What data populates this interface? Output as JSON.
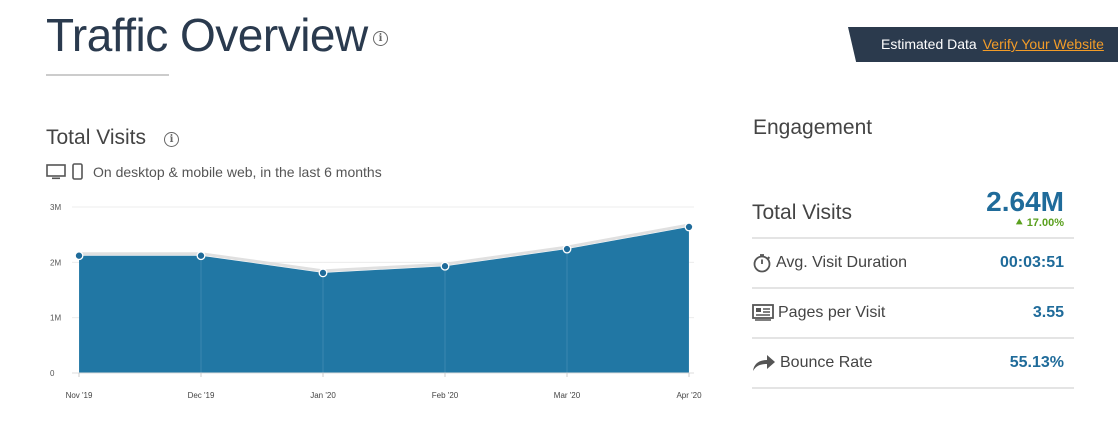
{
  "header": {
    "title": "Traffic Overview",
    "info_icon": "info-icon"
  },
  "banner": {
    "label": "Estimated Data",
    "link": "Verify Your Website"
  },
  "total_visits_panel": {
    "title": "Total Visits",
    "subtitle": "On desktop & mobile web, in the last 6 months"
  },
  "engagement": {
    "title": "Engagement",
    "total_visits": {
      "label": "Total Visits",
      "value": "2.64M",
      "change": "17.00%",
      "change_color": "#5aa01e"
    },
    "rows": [
      {
        "icon": "stopwatch-icon",
        "label": "Avg. Visit Duration",
        "value": "00:03:51"
      },
      {
        "icon": "pages-icon",
        "label": "Pages per Visit",
        "value": "3.55"
      },
      {
        "icon": "share-arrow-icon",
        "label": "Bounce Rate",
        "value": "55.13%"
      }
    ]
  },
  "chart_data": {
    "type": "area",
    "categories": [
      "Nov '19",
      "Dec '19",
      "Jan '20",
      "Feb '20",
      "Mar '20",
      "Apr '20"
    ],
    "values": [
      2.12,
      2.12,
      1.81,
      1.93,
      2.24,
      2.64
    ],
    "unit": "M",
    "ylim": [
      0,
      3
    ],
    "yticks": [
      "0",
      "1M",
      "2M",
      "3M"
    ],
    "grid": true,
    "color": "#2177a4"
  }
}
